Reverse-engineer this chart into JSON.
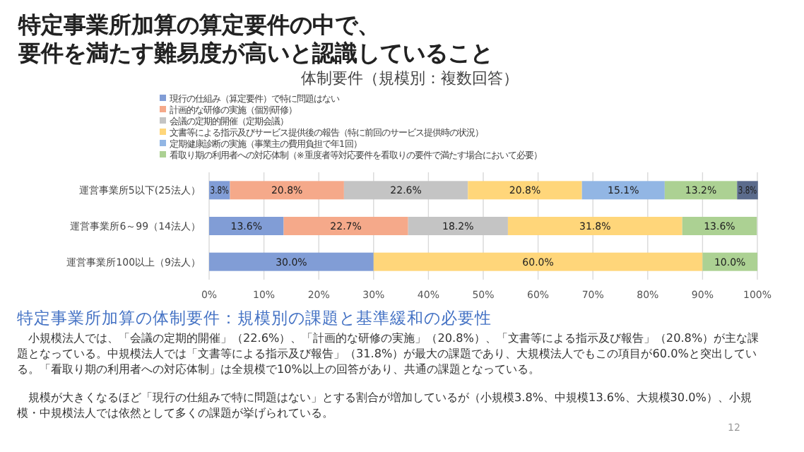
{
  "chart_data": {
    "type": "bar",
    "orientation": "horizontal",
    "stacked": true,
    "title": "特定事業所加算の算定要件の中で、要件を満たす難易度が高いと認識していること",
    "subtitle": "体制要件（規模別：複数回答）",
    "categories": [
      "運営事業所5以下(25法人）",
      "運営事業所6～99（14法人）",
      "運営事業所100以上（9法人）"
    ],
    "series": [
      {
        "name": "現行の仕組み（算定要件）で特に問題はない",
        "color": "#819dd6",
        "values": [
          3.8,
          13.6,
          30.0
        ],
        "value_labels": [
          "3.8%",
          "13.6%",
          "30.0%"
        ]
      },
      {
        "name": "計画的な研修の実施（個別研修）",
        "color": "#f5a98a",
        "values": [
          20.8,
          22.7,
          null
        ],
        "value_labels": [
          "20.8%",
          "22.7%",
          null
        ]
      },
      {
        "name": "会議の定期的開催（定期会議）",
        "color": "#c4c4c4",
        "values": [
          22.6,
          18.2,
          null
        ],
        "value_labels": [
          "22.6%",
          "18.2%",
          null
        ]
      },
      {
        "name": "文書等による指示及びサービス提供後の報告（特に前回のサービス提供時の状況）",
        "color": "#ffd67a",
        "values": [
          20.8,
          31.8,
          60.0
        ],
        "value_labels": [
          "20.8%",
          "31.8%",
          "60.0%"
        ]
      },
      {
        "name": "定期健康診断の実施（事業主の費用負担で年1回）",
        "color": "#92b6e4",
        "values": [
          15.1,
          null,
          null
        ],
        "value_labels": [
          "15.1%",
          null,
          null
        ]
      },
      {
        "name": "看取り期の利用者への対応体制（※重度者等対応要件を看取りの要件で満たす場合において必要）",
        "color": "#acd193",
        "values": [
          13.2,
          13.6,
          10.0
        ],
        "value_labels": [
          "13.2%",
          "13.6%",
          "10.0%"
        ]
      },
      {
        "color": "#5b6b8c",
        "values": [
          3.8,
          null,
          null
        ],
        "value_labels": [
          "3.8%",
          null,
          null
        ]
      }
    ],
    "xlim": [
      0,
      100
    ],
    "xticks": [
      {
        "value": 0,
        "label": "0%"
      },
      {
        "value": 10,
        "label": "10%"
      },
      {
        "value": 20,
        "label": "20%"
      },
      {
        "value": 30,
        "label": "30%"
      },
      {
        "value": 40,
        "label": "40%"
      },
      {
        "value": 50,
        "label": "50%"
      },
      {
        "value": 60,
        "label": "60%"
      },
      {
        "value": 70,
        "label": "70%"
      },
      {
        "value": 80,
        "label": "80%"
      },
      {
        "value": 90,
        "label": "90%"
      },
      {
        "value": 100,
        "label": "100%"
      }
    ],
    "grid": "x",
    "legend": "top",
    "annotations": [
      "特定事業所加算の体制要件：規模別の課題と基準緩和の必要性",
      "　小規模法人では、「会議の定期的開催」（22.6%）、「計画的な研修の実施」（20.8%）、「文書等による指示及び報告」（20.8%）が主な課題となっている。中規模法人では「文書等による指示及び報告」（31.8%）が最大の課題であり、大規模法人でもこの項目が60.0%と突出している。「看取り期の利用者への対応体制」は全規模で10%以上の回答があり、共通の課題となっている。",
      "　規模が大きくなるほど「現行の仕組みで特に問題はない」とする割合が増加しているが（小規模3.8%、中規模13.6%、大規模30.0%）、小規模・中規模法人では依然として多くの課題が挙げられている。",
      "12"
    ]
  }
}
